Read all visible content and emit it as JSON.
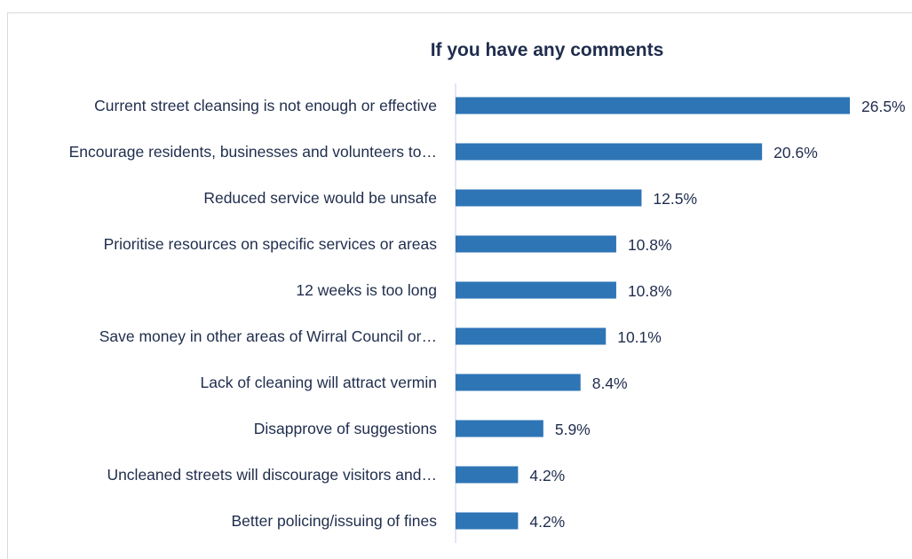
{
  "chart_data": {
    "type": "bar",
    "orientation": "horizontal",
    "title": "If you have any comments",
    "categories": [
      "Current street cleansing is not enough or effective",
      "Encourage residents, businesses and volunteers to…",
      "Reduced service would be unsafe",
      "Prioritise resources on specific services or areas",
      "12 weeks is too long",
      "Save money in other areas of Wirral Council or…",
      "Lack of cleaning will attract vermin",
      "Disapprove of suggestions",
      "Uncleaned streets will discourage visitors and…",
      "Better policing/issuing of fines"
    ],
    "values": [
      26.5,
      20.6,
      12.5,
      10.8,
      10.8,
      10.1,
      8.4,
      5.9,
      4.2,
      4.2
    ],
    "value_labels": [
      "26.5%",
      "20.6%",
      "12.5%",
      "10.8%",
      "10.8%",
      "10.1%",
      "8.4%",
      "5.9%",
      "4.2%",
      "4.2%"
    ],
    "xlim": [
      0,
      26.5
    ],
    "grid": false,
    "legend": "none",
    "bar_color": "#2e75b6",
    "axis_color": "#c9cbe8",
    "text_color": "#1f2d4d"
  }
}
